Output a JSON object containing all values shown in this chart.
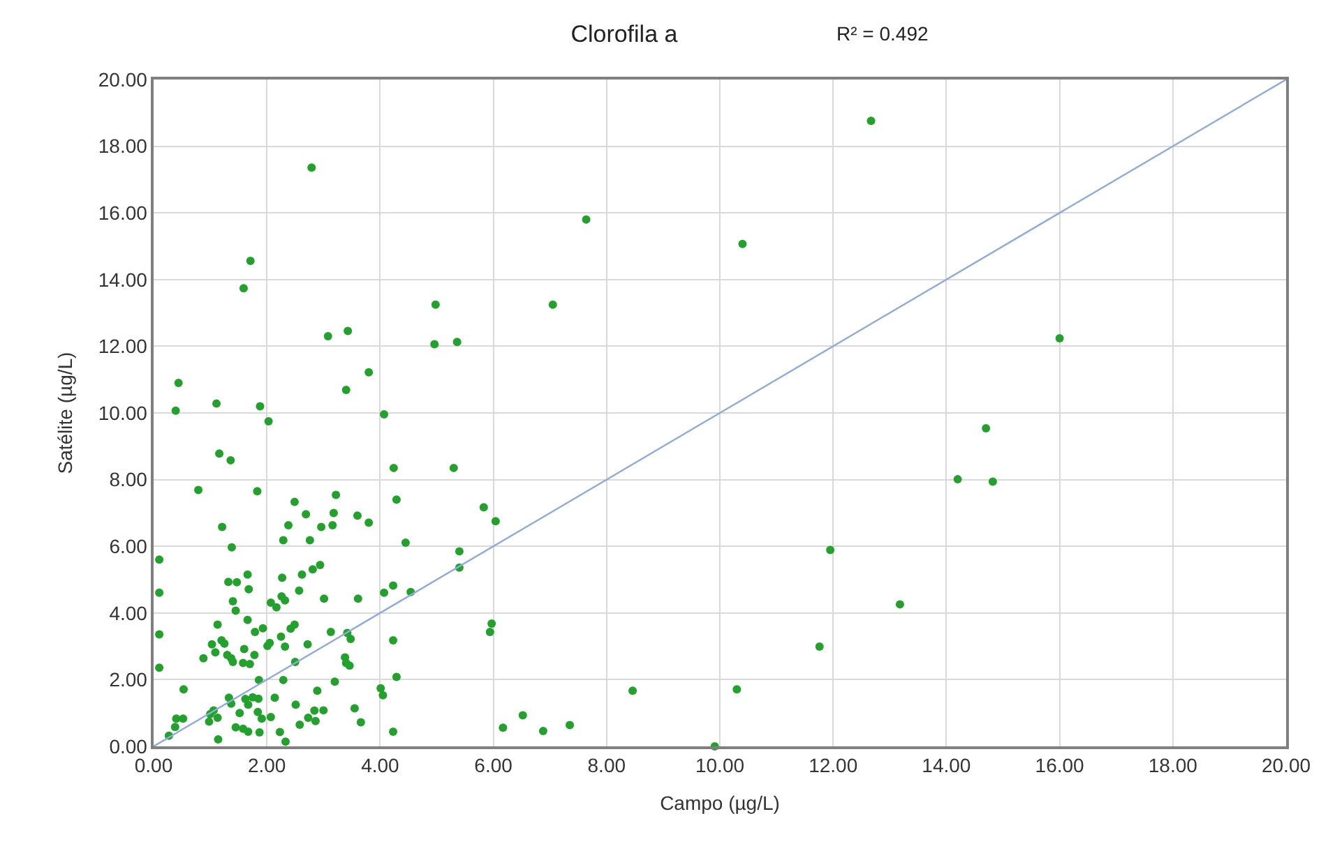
{
  "chart_data": {
    "type": "scatter",
    "title": "Clorofila a",
    "xlabel": "Campo (µg/L)",
    "ylabel": "Satélite (µg/L)",
    "annotations": [
      "R² = 0.492"
    ],
    "xlim": [
      0,
      20
    ],
    "ylim": [
      0,
      20
    ],
    "xticks": [
      {
        "value": 0,
        "label": "0.00"
      },
      {
        "value": 2,
        "label": "2.00"
      },
      {
        "value": 4,
        "label": "4.00"
      },
      {
        "value": 6,
        "label": "6.00"
      },
      {
        "value": 8,
        "label": "8.00"
      },
      {
        "value": 10,
        "label": "10.00"
      },
      {
        "value": 12,
        "label": "12.00"
      },
      {
        "value": 14,
        "label": "14.00"
      },
      {
        "value": 16,
        "label": "16.00"
      },
      {
        "value": 18,
        "label": "18.00"
      },
      {
        "value": 20,
        "label": "20.00"
      }
    ],
    "yticks": [
      {
        "value": 0,
        "label": "0.00"
      },
      {
        "value": 2,
        "label": "2.00"
      },
      {
        "value": 4,
        "label": "4.00"
      },
      {
        "value": 6,
        "label": "6.00"
      },
      {
        "value": 8,
        "label": "8.00"
      },
      {
        "value": 10,
        "label": "10.00"
      },
      {
        "value": 12,
        "label": "12.00"
      },
      {
        "value": 14,
        "label": "14.00"
      },
      {
        "value": 16,
        "label": "16.00"
      },
      {
        "value": 18,
        "label": "18.00"
      },
      {
        "value": 20,
        "label": "20.00"
      }
    ],
    "grid": true,
    "series": [
      {
        "color": "#22a22c",
        "marker": "circle",
        "x": [
          2.79,
          1.71,
          1.59,
          3.08,
          3.43,
          3.8,
          3.4,
          0.44,
          0.39,
          1.11,
          1.88,
          2.03,
          4.07,
          1.16,
          1.36,
          4.24,
          0.79,
          1.83,
          4.29,
          2.49,
          3.22,
          2.69,
          3.18,
          3.6,
          3.8,
          2.38,
          2.96,
          3.16,
          1.21,
          2.29,
          2.76,
          1.38,
          4.45,
          0.1,
          2.94,
          2.81,
          2.62,
          1.66,
          1.32,
          1.47,
          2.27,
          1.68,
          0.1,
          2.57,
          4.07,
          4.23,
          4.54,
          3.01,
          3.61,
          1.4,
          2.26,
          2.07,
          2.17,
          2.32,
          1.45,
          1.66,
          1.13,
          1.93,
          1.79,
          2.49,
          2.42,
          0.1,
          3.13,
          3.42,
          3.48,
          2.25,
          1.2,
          1.03,
          1.25,
          2.05,
          2.01,
          2.32,
          2.72,
          1.09,
          0.88,
          1.3,
          1.37,
          1.4,
          1.6,
          1.78,
          1.58,
          1.7,
          2.5,
          3.38,
          3.4,
          3.46,
          4.23,
          0.1,
          4.29,
          1.86,
          2.29,
          3.2,
          0.53,
          2.89,
          4.01,
          4.05,
          1.33,
          1.62,
          1.75,
          1.85,
          2.14,
          1.37,
          1.67,
          1.06,
          1.0,
          2.51,
          2.84,
          3.0,
          3.55,
          1.52,
          1.84,
          0.4,
          0.52,
          1.13,
          1.91,
          2.07,
          0.98,
          2.73,
          2.86,
          3.66,
          2.58,
          0.38,
          1.45,
          1.58,
          1.67,
          1.87,
          2.23,
          0.27,
          1.14,
          2.33,
          4.23,
          7.64,
          10.4,
          4.98,
          7.05,
          4.96,
          5.36,
          5.3,
          5.83,
          6.04,
          5.4,
          5.4,
          5.97,
          5.94,
          8.46,
          10.3,
          6.17,
          6.52,
          6.88,
          7.35,
          9.91,
          12.67,
          16.0,
          14.7,
          14.2,
          14.82,
          11.95,
          13.18,
          11.76
        ],
        "values": [
          17.36,
          14.56,
          13.74,
          12.3,
          12.46,
          11.22,
          10.69,
          10.9,
          10.07,
          10.28,
          10.2,
          9.75,
          9.96,
          8.78,
          8.58,
          8.35,
          7.69,
          7.65,
          7.4,
          7.33,
          7.54,
          6.96,
          7.0,
          6.92,
          6.71,
          6.63,
          6.58,
          6.63,
          6.58,
          6.18,
          6.18,
          5.97,
          6.11,
          5.6,
          5.44,
          5.31,
          5.15,
          5.15,
          4.93,
          4.92,
          5.06,
          4.71,
          4.61,
          4.67,
          4.61,
          4.82,
          4.63,
          4.43,
          4.43,
          4.35,
          4.5,
          4.31,
          4.17,
          4.38,
          4.07,
          3.79,
          3.65,
          3.54,
          3.43,
          3.65,
          3.53,
          3.36,
          3.43,
          3.4,
          3.22,
          3.29,
          3.18,
          3.06,
          3.08,
          3.1,
          3.01,
          2.99,
          3.06,
          2.82,
          2.64,
          2.74,
          2.64,
          2.53,
          2.92,
          2.74,
          2.5,
          2.47,
          2.53,
          2.67,
          2.5,
          2.42,
          3.18,
          2.36,
          2.08,
          1.99,
          1.99,
          1.94,
          1.71,
          1.67,
          1.74,
          1.53,
          1.46,
          1.42,
          1.47,
          1.43,
          1.46,
          1.28,
          1.25,
          1.08,
          0.97,
          1.25,
          1.07,
          1.08,
          1.14,
          1.0,
          1.03,
          0.83,
          0.83,
          0.86,
          0.83,
          0.88,
          0.74,
          0.86,
          0.76,
          0.72,
          0.65,
          0.58,
          0.57,
          0.53,
          0.44,
          0.42,
          0.43,
          0.32,
          0.21,
          0.14,
          0.44,
          15.8,
          15.07,
          13.25,
          13.25,
          12.06,
          12.13,
          8.35,
          7.17,
          6.75,
          5.85,
          5.36,
          3.68,
          3.43,
          1.67,
          1.71,
          0.56,
          0.93,
          0.46,
          0.64,
          0.0,
          18.76,
          12.24,
          9.54,
          8.01,
          7.94,
          5.89,
          4.26,
          2.99
        ]
      },
      {
        "type": "line",
        "color": "#8faadc",
        "marker": "none",
        "line_style": "solid",
        "x": [
          0,
          20
        ],
        "values": [
          0,
          20
        ]
      }
    ]
  }
}
